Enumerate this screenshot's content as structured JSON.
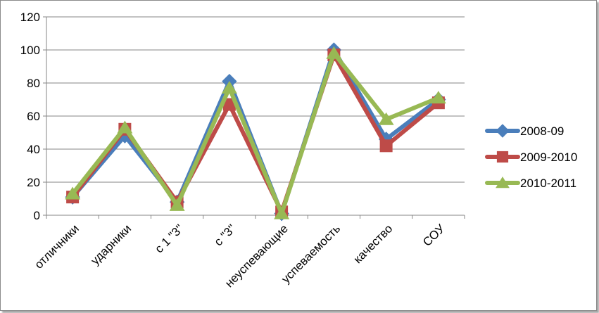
{
  "chart_data": {
    "type": "line",
    "categories": [
      "отличники",
      "ударники",
      "с 1 \"3\"",
      "с \"3\"",
      "неуспевающие",
      "успеваемость",
      "качество",
      "СОУ"
    ],
    "series": [
      {
        "name": "2008-09",
        "color": "#4a7ebb",
        "marker": "diamond",
        "values": [
          11,
          48,
          8,
          81,
          1,
          100,
          46,
          70
        ]
      },
      {
        "name": "2009-2010",
        "color": "#be4b48",
        "marker": "square",
        "values": [
          11,
          52,
          8,
          67,
          2,
          97,
          42,
          68
        ]
      },
      {
        "name": "2010-2011",
        "color": "#98b954",
        "marker": "triangle",
        "values": [
          13,
          53,
          6,
          77,
          1,
          98,
          58,
          71
        ]
      }
    ],
    "ylim": [
      0,
      120
    ],
    "yticks": [
      0,
      20,
      40,
      60,
      80,
      100,
      120
    ],
    "grid": true,
    "legend": "right"
  }
}
